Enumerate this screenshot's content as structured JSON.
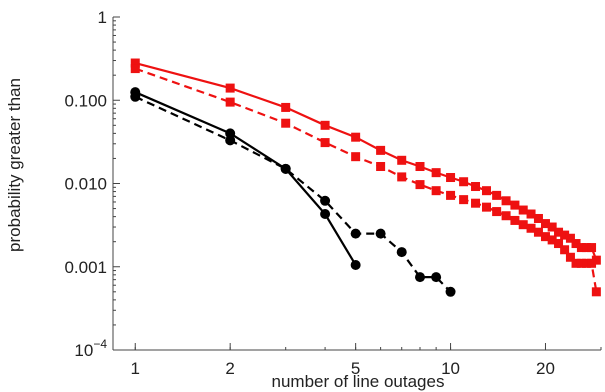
{
  "chart_data": {
    "type": "line",
    "title": "",
    "xlabel": "number of line outages",
    "ylabel": "probability greater than",
    "xscale": "log",
    "yscale": "log",
    "xlim": [
      0.85,
      30
    ],
    "ylim": [
      0.0001,
      1
    ],
    "xticks": [
      {
        "value": 1,
        "label": "1"
      },
      {
        "value": 2,
        "label": "2"
      },
      {
        "value": 5,
        "label": "5"
      },
      {
        "value": 10,
        "label": "10"
      },
      {
        "value": 20,
        "label": "20"
      }
    ],
    "yticks": [
      {
        "value": 0.0001,
        "label": "10",
        "sup": "−4"
      },
      {
        "value": 0.001,
        "label": "0.001"
      },
      {
        "value": 0.01,
        "label": "0.010"
      },
      {
        "value": 0.1,
        "label": "0.100"
      },
      {
        "value": 1,
        "label": "1"
      }
    ],
    "grid": false,
    "legend": "none",
    "series": [
      {
        "color": "#ee1111",
        "dash": "solid",
        "marker": "square",
        "x": [
          1,
          2,
          3,
          4,
          5,
          6,
          7,
          8,
          9,
          10,
          11,
          12,
          13,
          14,
          15,
          16,
          17,
          18,
          19,
          20,
          21,
          22,
          23,
          24,
          25,
          26,
          27,
          28,
          29
        ],
        "y": [
          0.28,
          0.14,
          0.082,
          0.05,
          0.036,
          0.025,
          0.019,
          0.016,
          0.0135,
          0.0118,
          0.0105,
          0.0092,
          0.0082,
          0.0072,
          0.0062,
          0.0055,
          0.0048,
          0.0043,
          0.0038,
          0.0033,
          0.003,
          0.0026,
          0.0024,
          0.0022,
          0.0019,
          0.0017,
          0.0017,
          0.0017,
          0.0012
        ]
      },
      {
        "color": "#ee1111",
        "dash": "dashed",
        "marker": "square",
        "x": [
          1,
          2,
          3,
          4,
          5,
          6,
          7,
          8,
          9,
          10,
          11,
          12,
          13,
          14,
          15,
          16,
          17,
          18,
          19,
          20,
          21,
          22,
          23,
          24,
          25,
          26,
          27,
          28,
          29
        ],
        "y": [
          0.24,
          0.095,
          0.053,
          0.031,
          0.021,
          0.016,
          0.012,
          0.0097,
          0.0082,
          0.0072,
          0.0064,
          0.0058,
          0.0052,
          0.0046,
          0.0041,
          0.0036,
          0.0032,
          0.0029,
          0.0026,
          0.0023,
          0.0021,
          0.0019,
          0.0016,
          0.0013,
          0.0011,
          0.0011,
          0.0011,
          0.0011,
          0.0005
        ]
      },
      {
        "color": "#000000",
        "dash": "solid",
        "marker": "circle",
        "x": [
          1,
          2,
          3,
          4,
          5
        ],
        "y": [
          0.125,
          0.04,
          0.015,
          0.0043,
          0.00105
        ]
      },
      {
        "color": "#000000",
        "dash": "dashed",
        "marker": "circle",
        "x": [
          1,
          2,
          3,
          4,
          5,
          6,
          7,
          8,
          9,
          10
        ],
        "y": [
          0.11,
          0.033,
          0.015,
          0.0062,
          0.0025,
          0.0025,
          0.0015,
          0.00075,
          0.00075,
          0.0005
        ]
      }
    ]
  }
}
